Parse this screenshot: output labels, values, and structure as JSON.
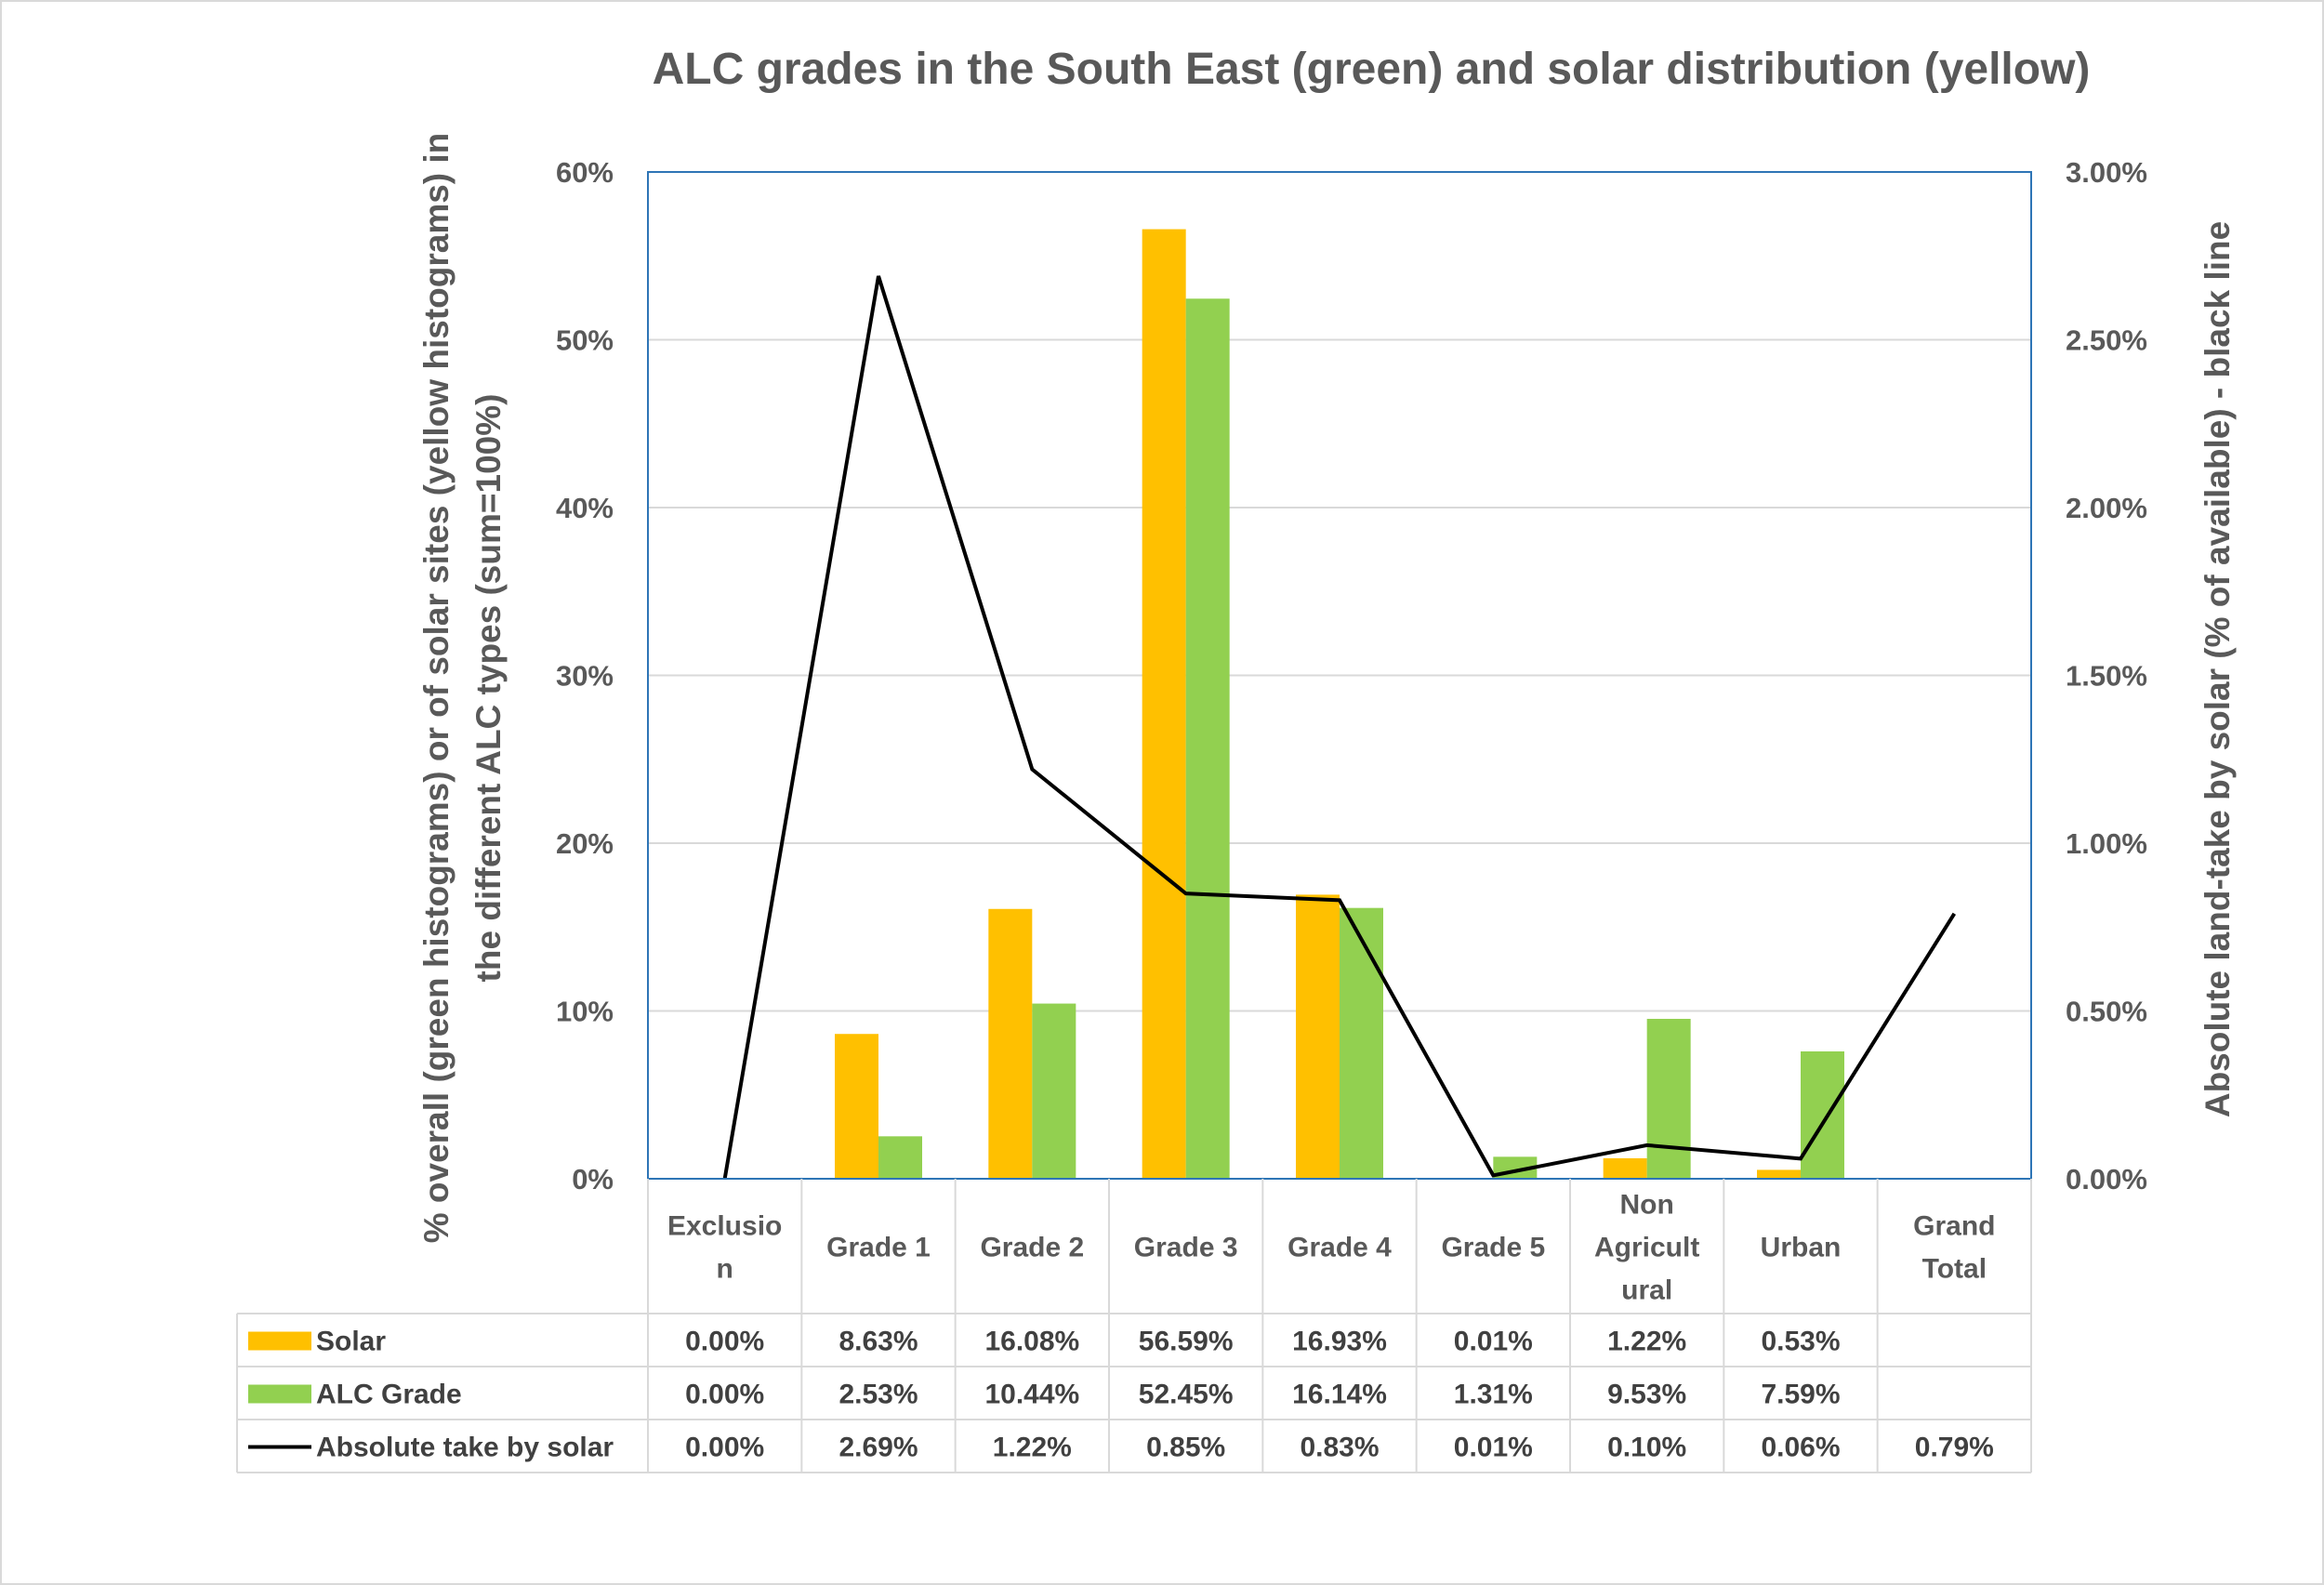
{
  "chart_data": {
    "type": "bar",
    "title": "ALC grades in the South East (green) and solar distribution (yellow)",
    "ylabel": "% overall (green histograms) or of solar sites (yellow histograms) in the different ALC types (sum=100%)",
    "ylabel_lines": [
      "% overall (green histograms) or of solar sites (yellow histograms) in",
      "the different ALC types (sum=100%)"
    ],
    "y2label": "Absolute land-take by solar (% of available) - black line",
    "ylim": [
      0,
      60
    ],
    "y2lim": [
      0,
      3
    ],
    "y_ticks": [
      0,
      10,
      20,
      30,
      40,
      50,
      60
    ],
    "y_tick_labels": [
      "0%",
      "10%",
      "20%",
      "30%",
      "40%",
      "50%",
      "60%"
    ],
    "y2_ticks": [
      0,
      0.5,
      1,
      1.5,
      2,
      2.5,
      3
    ],
    "y2_tick_labels": [
      "0.00%",
      "0.50%",
      "1.00%",
      "1.50%",
      "2.00%",
      "2.50%",
      "3.00%"
    ],
    "categories": [
      [
        "Exclusio",
        "n"
      ],
      [
        "Grade 1"
      ],
      [
        "Grade 2"
      ],
      [
        "Grade 3"
      ],
      [
        "Grade 4"
      ],
      [
        "Grade 5"
      ],
      [
        "Non",
        "Agricult",
        "ural"
      ],
      [
        "Urban"
      ],
      [
        "Grand",
        "Total"
      ]
    ],
    "series": [
      {
        "name": "Solar",
        "kind": "bar",
        "axis": "left",
        "color": "#FFC000",
        "values": [
          0.0,
          8.63,
          16.08,
          56.59,
          16.93,
          0.01,
          1.22,
          0.53,
          null
        ],
        "labels": [
          "0.00%",
          "8.63%",
          "16.08%",
          "56.59%",
          "16.93%",
          "0.01%",
          "1.22%",
          "0.53%",
          ""
        ]
      },
      {
        "name": "ALC Grade",
        "kind": "bar",
        "axis": "left",
        "color": "#92D050",
        "values": [
          0.0,
          2.53,
          10.44,
          52.45,
          16.14,
          1.31,
          9.53,
          7.59,
          null
        ],
        "labels": [
          "0.00%",
          "2.53%",
          "10.44%",
          "52.45%",
          "16.14%",
          "1.31%",
          "9.53%",
          "7.59%",
          ""
        ]
      },
      {
        "name": "Absolute take by solar",
        "kind": "line",
        "axis": "right",
        "color": "#000000",
        "values": [
          0.0,
          2.69,
          1.22,
          0.85,
          0.83,
          0.01,
          0.1,
          0.06,
          0.79
        ],
        "labels": [
          "0.00%",
          "2.69%",
          "1.22%",
          "0.85%",
          "0.83%",
          "0.01%",
          "0.10%",
          "0.06%",
          "0.79%"
        ]
      }
    ],
    "data_table": true,
    "grid": true
  },
  "colors": {
    "plot_border": "#2E75B6",
    "gridline": "#D9D9D9",
    "table_border": "#D9D9D9",
    "outer_border": "#D9D9D9"
  }
}
